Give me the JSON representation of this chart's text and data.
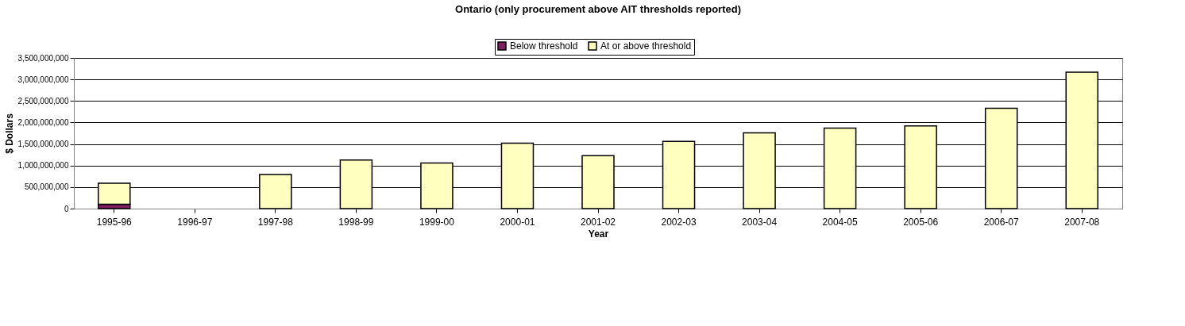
{
  "chart_data": {
    "type": "bar",
    "title": "Ontario (only procurement above AIT thresholds reported)",
    "xlabel": "Year",
    "ylabel": "$ Dollars",
    "categories": [
      "1995-96",
      "1996-97",
      "1997-98",
      "1998-99",
      "1999-00",
      "2000-01",
      "2001-02",
      "2002-03",
      "2003-04",
      "2004-05",
      "2005-06",
      "2006-07",
      "2007-08"
    ],
    "series": [
      {
        "name": "Below threshold",
        "color": "#7f1f5f",
        "values": [
          100000000,
          null,
          null,
          null,
          null,
          null,
          null,
          null,
          null,
          null,
          null,
          null,
          null
        ]
      },
      {
        "name": "At or above threshold",
        "color": "#ffffc0",
        "values": [
          490000000,
          null,
          790000000,
          1130000000,
          1060000000,
          1520000000,
          1230000000,
          1560000000,
          1760000000,
          1870000000,
          1920000000,
          2330000000,
          3170000000
        ]
      }
    ],
    "stacked": true,
    "ylim": [
      0,
      3500000000
    ],
    "yticks": [
      0,
      {
        "value": 500000000,
        "label": "500,000,000"
      },
      {
        "value": 1000000000,
        "label": "1,000,000,000"
      },
      {
        "value": 1500000000,
        "label": "1,500,000,000"
      },
      {
        "value": 2000000000,
        "label": "2,000,000,000"
      },
      {
        "value": 2500000000,
        "label": "2,500,000,000"
      },
      {
        "value": 3000000000,
        "label": "3,000,000,000"
      },
      {
        "value": 3500000000,
        "label": "3,500,000,000"
      }
    ],
    "grid": "y",
    "legend": "top"
  }
}
